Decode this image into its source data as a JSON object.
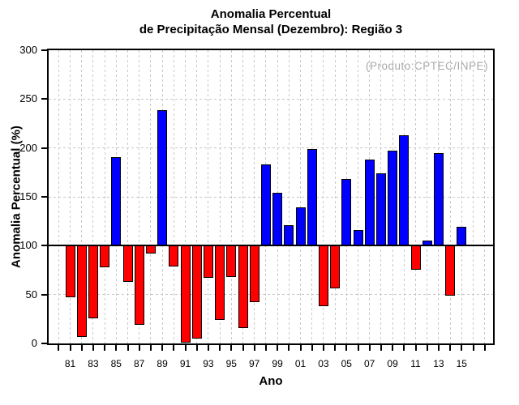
{
  "title": {
    "line1": "Anomalia Percentual",
    "line2": "de Precipitação Mensal (Dezembro): Região 3"
  },
  "chart_data": {
    "type": "bar",
    "title": "Anomalia Percentual de Precipitação Mensal (Dezembro): Região 3",
    "xlabel": "Ano",
    "ylabel": "Anomalia Percentual (%)",
    "annotation": "(Produto:CPTEC/INPE)",
    "ylim": [
      0,
      300
    ],
    "yticks": [
      0,
      50,
      100,
      150,
      200,
      250,
      300
    ],
    "baseline": 100,
    "grid": true,
    "legend": "none",
    "categories": [
      "81",
      "82",
      "83",
      "84",
      "85",
      "86",
      "87",
      "88",
      "89",
      "90",
      "91",
      "92",
      "93",
      "94",
      "95",
      "96",
      "97",
      "98",
      "99",
      "00",
      "01",
      "02",
      "03",
      "04",
      "05",
      "06",
      "07",
      "08",
      "09",
      "10",
      "11",
      "12",
      "13",
      "14",
      "15"
    ],
    "x_tick_labels_shown": [
      "81",
      "83",
      "85",
      "87",
      "89",
      "91",
      "93",
      "95",
      "97",
      "99",
      "01",
      "03",
      "05",
      "07",
      "09",
      "11",
      "13",
      "15"
    ],
    "values": [
      47,
      7,
      26,
      78,
      191,
      63,
      19,
      92,
      239,
      79,
      1,
      5,
      67,
      24,
      68,
      16,
      42,
      183,
      154,
      121,
      139,
      199,
      38,
      56,
      168,
      116,
      188,
      174,
      197,
      213,
      75,
      105,
      195,
      49,
      119
    ],
    "colors": {
      "bar_above_baseline": "#0000ff",
      "bar_below_baseline": "#ff0000",
      "baseline_line": "#000000",
      "gridline": "#c8c8c8",
      "frame": "#000000",
      "annotation_text": "#a8a8a8"
    }
  }
}
